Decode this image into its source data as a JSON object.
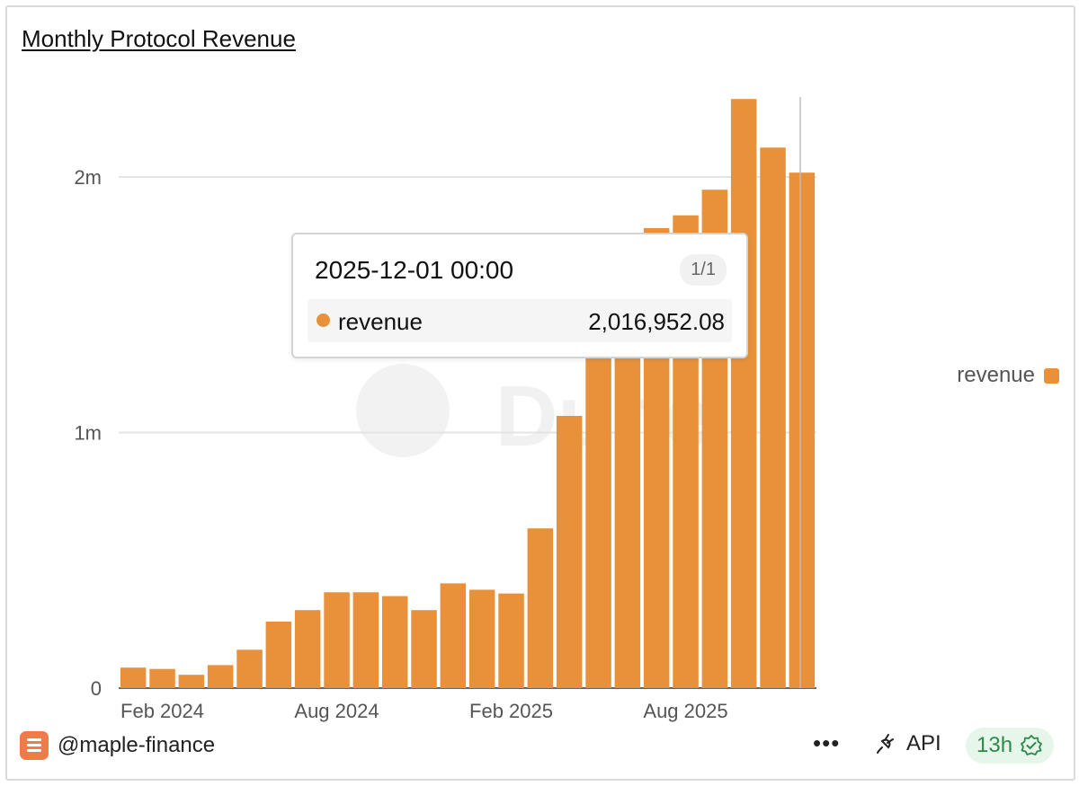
{
  "title": "Monthly Protocol Revenue",
  "watermark": "Dune",
  "legend": {
    "label": "revenue",
    "color": "#e8913a"
  },
  "tooltip": {
    "date": "2025-12-01 00:00",
    "page": "1/1",
    "series": "revenue",
    "value": "2,016,952.08"
  },
  "footer": {
    "owner": "@maple-finance",
    "more": "•••",
    "api_label": "API",
    "freshness": "13h"
  },
  "colors": {
    "bar": "#e8913a",
    "grid": "#e4e4e4",
    "freshness": "#2d8a48"
  },
  "chart_data": {
    "type": "bar",
    "title": "Monthly Protocol Revenue",
    "categories": [
      "2024-01",
      "2024-02",
      "2024-03",
      "2024-04",
      "2024-05",
      "2024-06",
      "2024-07",
      "2024-08",
      "2024-09",
      "2024-10",
      "2024-11",
      "2024-12",
      "2025-01",
      "2025-02",
      "2025-03",
      "2025-04",
      "2025-05",
      "2025-06",
      "2025-07",
      "2025-08",
      "2025-09",
      "2025-10",
      "2025-11",
      "2025-12"
    ],
    "series": [
      {
        "name": "revenue",
        "values": [
          80000,
          75000,
          52000,
          90000,
          150000,
          260000,
          305000,
          375000,
          375000,
          360000,
          305000,
          410000,
          385000,
          370000,
          625000,
          1065000,
          1650000,
          1720000,
          1800000,
          1850000,
          1950000,
          2305000,
          2115000,
          2016952.08
        ]
      }
    ],
    "x_tick_labels": [
      "Feb 2024",
      "Aug 2024",
      "Feb 2025",
      "Aug 2025"
    ],
    "y_tick_labels": [
      "0",
      "1m",
      "2m"
    ],
    "y_ticks": [
      0,
      1000000,
      2000000
    ],
    "ylim": [
      0,
      2400000
    ],
    "xlabel": "",
    "ylabel": "",
    "grid": true,
    "legend_position": "right"
  }
}
